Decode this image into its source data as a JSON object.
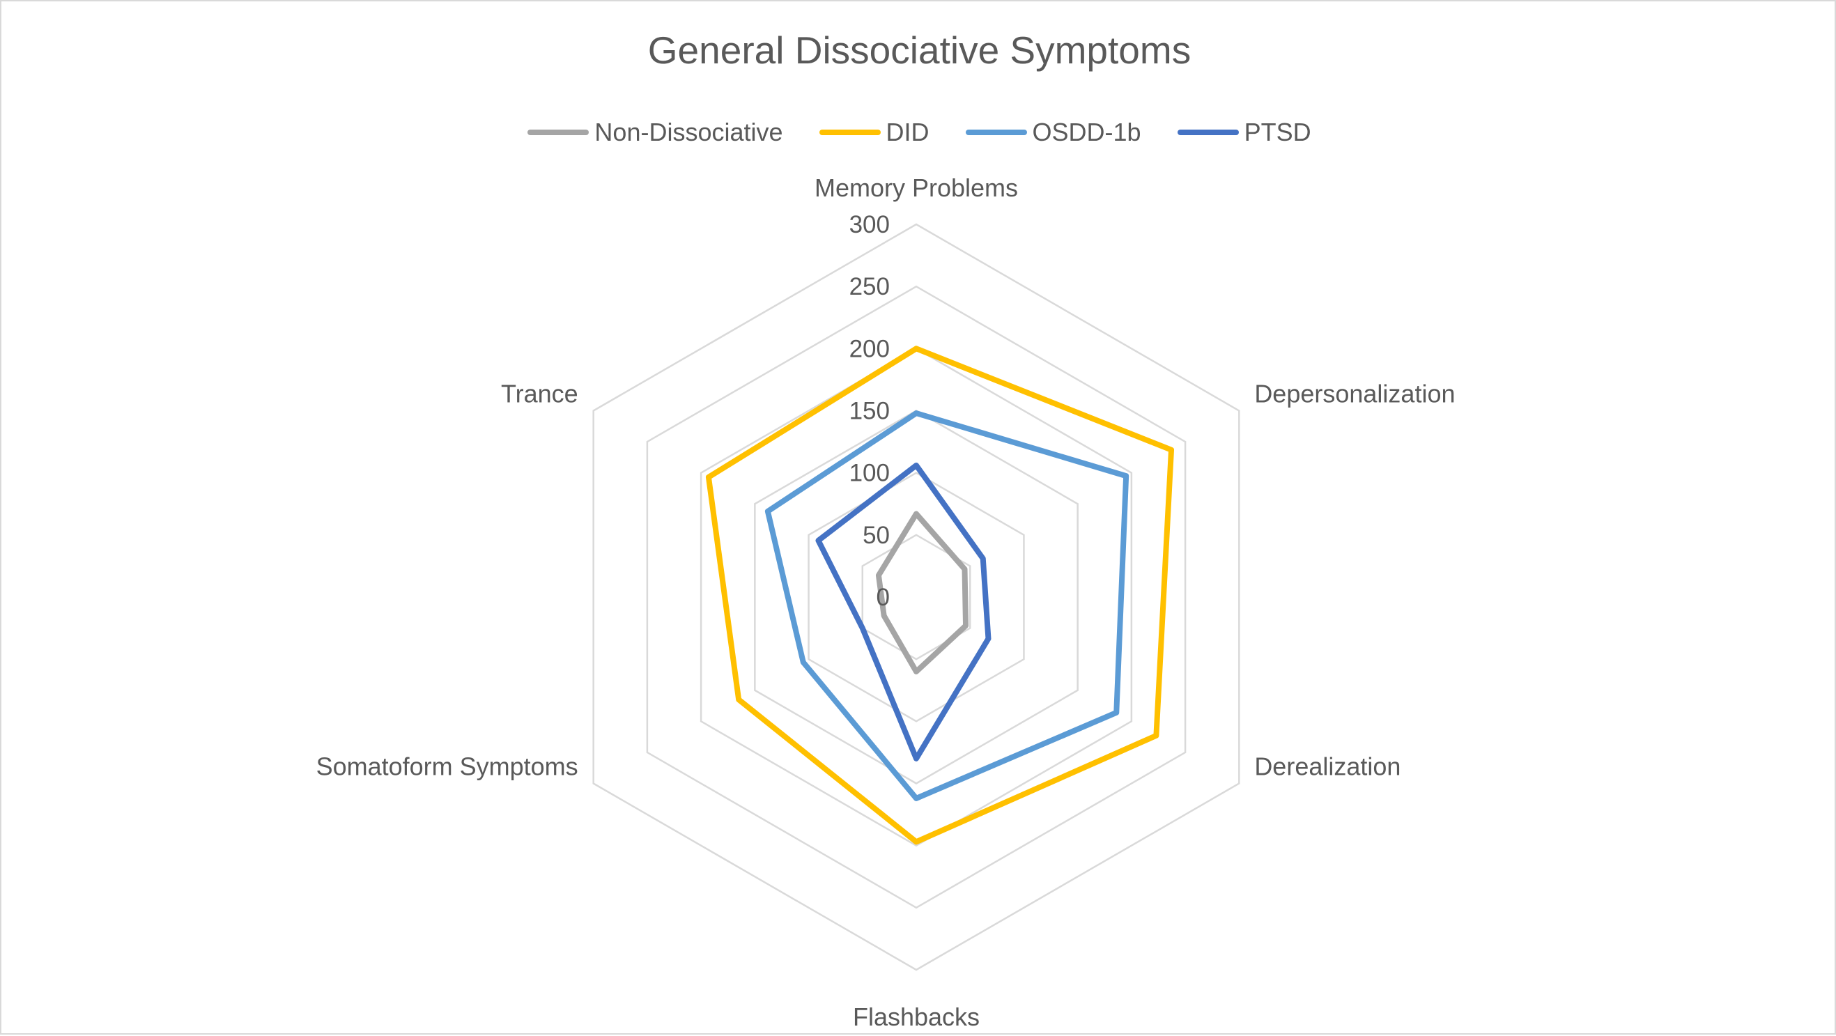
{
  "chart_data": {
    "type": "radar",
    "title": "General Dissociative Symptoms",
    "categories": [
      "Memory Problems",
      "Depersonalization",
      "Derealization",
      "Flashbacks",
      "Somatoform Symptoms",
      "Trance"
    ],
    "rlim": [
      0,
      300
    ],
    "ticks": [
      "0",
      "50",
      "100",
      "150",
      "200",
      "250",
      "300"
    ],
    "tick_values": [
      0,
      50,
      100,
      150,
      200,
      250,
      300
    ],
    "legend_position": "top",
    "grid": true,
    "series": [
      {
        "name": "Non-Dissociative",
        "color": "#a5a5a5",
        "values": [
          67,
          45,
          46,
          60,
          30,
          35
        ]
      },
      {
        "name": "DID",
        "color": "#ffc000",
        "values": [
          200,
          237,
          223,
          197,
          165,
          193
        ]
      },
      {
        "name": "OSDD-1b",
        "color": "#5b9bd5",
        "values": [
          148,
          195,
          186,
          162,
          105,
          138
        ]
      },
      {
        "name": "PTSD",
        "color": "#4472c4",
        "values": [
          106,
          62,
          67,
          130,
          50,
          91
        ]
      }
    ]
  }
}
